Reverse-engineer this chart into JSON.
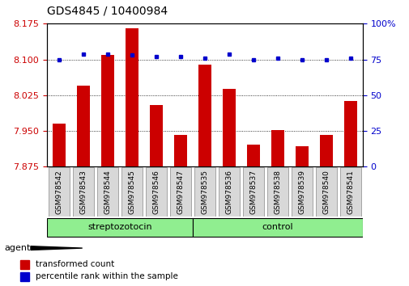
{
  "title": "GDS4845 / 10400984",
  "samples": [
    "GSM978542",
    "GSM978543",
    "GSM978544",
    "GSM978545",
    "GSM978546",
    "GSM978547",
    "GSM978535",
    "GSM978536",
    "GSM978537",
    "GSM978538",
    "GSM978539",
    "GSM978540",
    "GSM978541"
  ],
  "transformed_count": [
    7.965,
    8.045,
    8.11,
    8.165,
    8.005,
    7.942,
    8.09,
    8.038,
    7.922,
    7.952,
    7.918,
    7.942,
    8.013
  ],
  "percentile_rank": [
    75,
    79,
    79,
    78,
    77,
    77,
    76,
    79,
    75,
    76,
    75,
    75,
    76
  ],
  "ylim_left": [
    7.875,
    8.175
  ],
  "ylim_right": [
    0,
    100
  ],
  "yticks_left": [
    7.875,
    7.95,
    8.025,
    8.1,
    8.175
  ],
  "yticks_right": [
    0,
    25,
    50,
    75,
    100
  ],
  "group1_label": "streptozotocin",
  "group2_label": "control",
  "group1_count": 6,
  "group2_count": 7,
  "bar_color": "#cc0000",
  "dot_color": "#0000cc",
  "left_tick_color": "#cc0000",
  "right_tick_color": "#0000cc",
  "group_bg": "#90ee90",
  "legend_bar_label": "transformed count",
  "legend_dot_label": "percentile rank within the sample",
  "agent_label": "agent",
  "title_fontsize": 10,
  "tick_fontsize": 8,
  "sample_fontsize": 6.5,
  "bar_width": 0.55
}
